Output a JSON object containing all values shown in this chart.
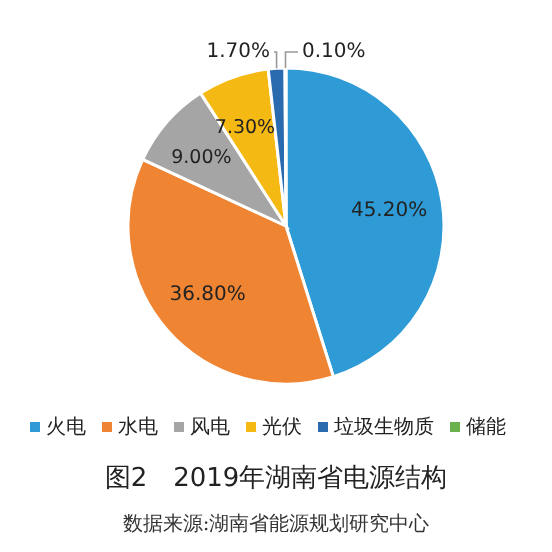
{
  "chart_data": {
    "type": "pie",
    "title": "图2　2019年湖南省电源结构",
    "categories": [
      "火电",
      "水电",
      "风电",
      "光伏",
      "垃圾生物质",
      "储能"
    ],
    "values": [
      45.2,
      36.8,
      9.0,
      7.3,
      1.7,
      0.1
    ],
    "value_labels": [
      "45.20%",
      "36.80%",
      "9.00%",
      "7.30%",
      "1.70%",
      "0.10%"
    ],
    "colors": [
      "#2e9ad6",
      "#ef8433",
      "#a5a5a5",
      "#f5b914",
      "#2a6bb0",
      "#6ab04c"
    ],
    "legend": "bottom",
    "annotations": [
      "数据来源:湖南省能源规划研究中心"
    ]
  }
}
